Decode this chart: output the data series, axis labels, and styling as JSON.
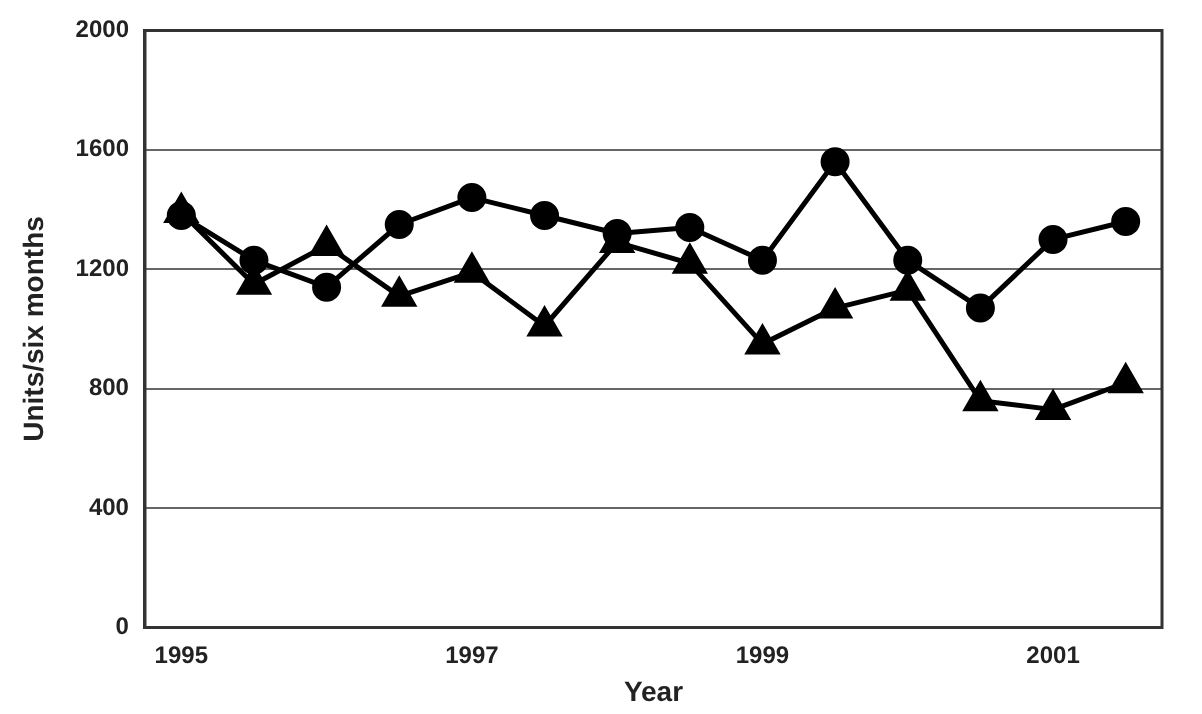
{
  "chart_data": {
    "type": "line",
    "xlabel": "Year",
    "ylabel": "Units/six months",
    "categories": [
      "1995",
      null,
      null,
      null,
      "1997",
      null,
      null,
      null,
      "1999",
      null,
      null,
      null,
      "2001",
      null
    ],
    "series": [
      {
        "color": "#000000",
        "marker": "circle",
        "values": [
          1380,
          1230,
          1140,
          1350,
          1440,
          1380,
          1320,
          1340,
          1230,
          1560,
          1230,
          1070,
          1300,
          1360
        ]
      },
      {
        "color": "#000000",
        "marker": "triangle",
        "values": [
          1390,
          1150,
          1280,
          1110,
          1190,
          1010,
          1290,
          1220,
          950,
          1070,
          1130,
          760,
          730,
          820
        ]
      }
    ],
    "ylim": [
      0,
      2000
    ],
    "yticks": [
      0,
      400,
      800,
      1200,
      1600,
      2000
    ],
    "grid": "y",
    "legend": false
  }
}
